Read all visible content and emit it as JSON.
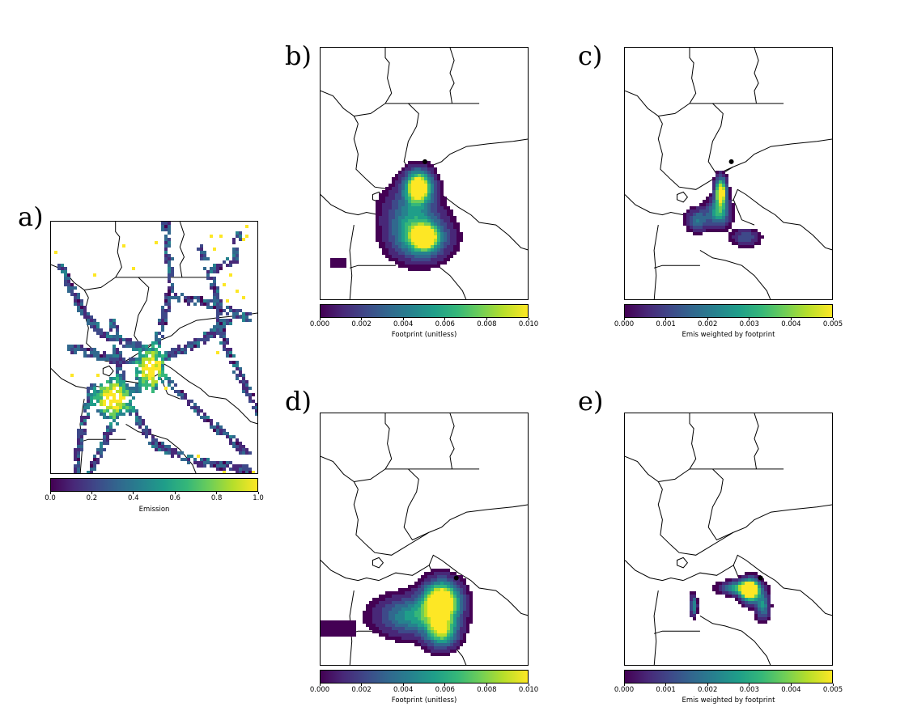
{
  "panels": [
    {
      "letter": "a)",
      "colorbar_label": "Emission",
      "ticks": [
        "0.0",
        "0.2",
        "0.4",
        "0.6",
        "0.8",
        "1.0"
      ],
      "receptor": false
    },
    {
      "letter": "b)",
      "colorbar_label": "Footprint (unitless)",
      "ticks": [
        "0.000",
        "0.002",
        "0.004",
        "0.006",
        "0.008",
        "0.010"
      ],
      "receptor": true
    },
    {
      "letter": "c)",
      "colorbar_label": "Emis weighted by footprint",
      "ticks": [
        "0.000",
        "0.001",
        "0.002",
        "0.003",
        "0.004",
        "0.005"
      ],
      "receptor": true
    },
    {
      "letter": "d)",
      "colorbar_label": "Footprint (unitless)",
      "ticks": [
        "0.000",
        "0.002",
        "0.004",
        "0.006",
        "0.008",
        "0.010"
      ],
      "receptor": true
    },
    {
      "letter": "e)",
      "colorbar_label": "Emis weighted by footprint",
      "ticks": [
        "0.000",
        "0.001",
        "0.002",
        "0.003",
        "0.004",
        "0.005"
      ],
      "receptor": true
    }
  ],
  "colormap": "viridis",
  "colors": {
    "low": "#440154",
    "mid": "#21918c",
    "high": "#fde725",
    "receptor": "#000000"
  }
}
